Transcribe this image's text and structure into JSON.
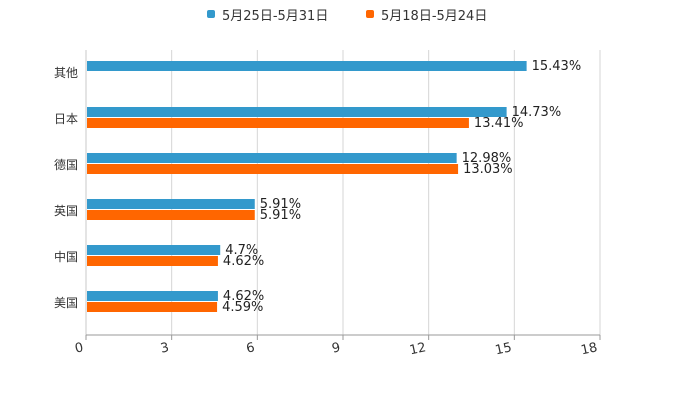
{
  "chart_data": {
    "type": "bar",
    "orientation": "horizontal",
    "categories": [
      "其他",
      "日本",
      "德国",
      "英国",
      "中国",
      "美国"
    ],
    "series": [
      {
        "name": "5月25日-5月31日",
        "color": "#3399cc",
        "values": [
          15.43,
          14.73,
          12.98,
          5.91,
          4.7,
          4.62
        ],
        "labels": [
          "15.43%",
          "14.73%",
          "12.98%",
          "5.91%",
          "4.7%",
          "4.62%"
        ]
      },
      {
        "name": "5月18日-5月24日",
        "color": "#ff6600",
        "values": [
          null,
          13.41,
          13.03,
          5.91,
          4.62,
          4.59
        ],
        "labels": [
          "",
          "13.41%",
          "13.03%",
          "5.91%",
          "4.62%",
          "4.59%"
        ]
      }
    ],
    "xlim": [
      0,
      18
    ],
    "xticks": [
      0,
      3,
      6,
      9,
      12,
      15,
      18
    ],
    "xtick_labels": [
      "0",
      "3",
      "6",
      "9",
      "12",
      "15",
      "18"
    ],
    "grid": true,
    "legend_position": "top-center"
  }
}
